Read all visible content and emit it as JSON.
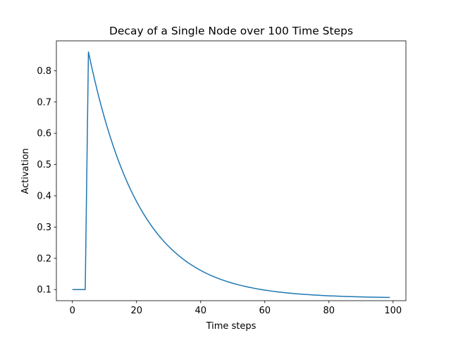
{
  "chart_data": {
    "type": "line",
    "title": "Decay of a Single Node over 100 Time Steps",
    "xlabel": "Time steps",
    "ylabel": "Activation",
    "xlim": [
      -5,
      104
    ],
    "ylim": [
      0.0645,
      0.8955
    ],
    "xticks": [
      0,
      20,
      40,
      60,
      80,
      100
    ],
    "yticks": [
      0.1,
      0.2,
      0.3,
      0.4,
      0.5,
      0.6,
      0.7,
      0.8
    ],
    "grid": false,
    "legend": "none",
    "series": [
      {
        "color": "#1f77b4",
        "x": [
          0,
          1,
          2,
          3,
          4,
          5,
          6,
          7,
          8,
          9,
          10,
          11,
          12,
          13,
          14,
          15,
          16,
          17,
          18,
          19,
          20,
          21,
          22,
          23,
          24,
          25,
          26,
          27,
          28,
          29,
          30,
          31,
          32,
          33,
          34,
          35,
          36,
          37,
          38,
          39,
          40,
          41,
          42,
          43,
          44,
          45,
          46,
          47,
          48,
          49,
          50,
          51,
          52,
          53,
          54,
          55,
          56,
          57,
          58,
          59,
          60,
          61,
          62,
          63,
          64,
          65,
          66,
          67,
          68,
          69,
          70,
          71,
          72,
          73,
          74,
          75,
          76,
          77,
          78,
          79,
          80,
          81,
          82,
          83,
          84,
          85,
          86,
          87,
          88,
          89,
          90,
          91,
          92,
          93,
          94,
          95,
          96,
          97,
          98,
          99
        ],
        "y": [
          0.1,
          0.1,
          0.1,
          0.1,
          0.1,
          0.86,
          0.8125,
          0.7678,
          0.7258,
          0.6863,
          0.6492,
          0.6144,
          0.5817,
          0.5509,
          0.522,
          0.4948,
          0.4693,
          0.4453,
          0.4228,
          0.4016,
          0.3817,
          0.363,
          0.3455,
          0.329,
          0.3135,
          0.2989,
          0.2852,
          0.2723,
          0.2602,
          0.2489,
          0.2382,
          0.2282,
          0.2188,
          0.2099,
          0.2016,
          0.1938,
          0.1865,
          0.1796,
          0.1731,
          0.167,
          0.1613,
          0.1559,
          0.1509,
          0.1461,
          0.1417,
          0.1375,
          0.1336,
          0.1299,
          0.1265,
          0.1233,
          0.1202,
          0.1174,
          0.1147,
          0.1122,
          0.1098,
          0.1076,
          0.1055,
          0.1035,
          0.1017,
          0.1,
          0.0983,
          0.0968,
          0.0953,
          0.094,
          0.0927,
          0.0915,
          0.0904,
          0.0893,
          0.0883,
          0.0874,
          0.0865,
          0.0857,
          0.0849,
          0.0842,
          0.0835,
          0.0829,
          0.0822,
          0.0817,
          0.0811,
          0.0806,
          0.0801,
          0.0797,
          0.0793,
          0.0789,
          0.0785,
          0.0781,
          0.0778,
          0.0775,
          0.0772,
          0.0769,
          0.0766,
          0.0764,
          0.0761,
          0.0759,
          0.0757,
          0.0755,
          0.0753,
          0.0751,
          0.0749,
          0.0748
        ]
      }
    ]
  }
}
